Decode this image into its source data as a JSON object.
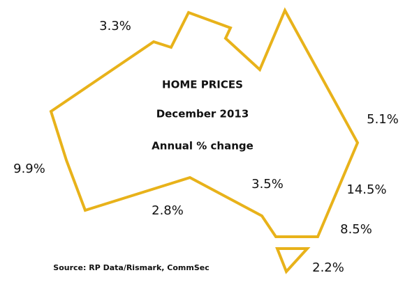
{
  "header": {
    "title": "HOME PRICES",
    "date": "December 2013",
    "measure": "Annual % change"
  },
  "regions": [
    {
      "label": "3.3%"
    },
    {
      "label": "5.1%"
    },
    {
      "label": "9.9%"
    },
    {
      "label": "3.5%"
    },
    {
      "label": "14.5%"
    },
    {
      "label": "2.8%"
    },
    {
      "label": "8.5%"
    },
    {
      "label": "2.2%"
    }
  ],
  "source": "Source: RP Data/Rismark, CommSec"
}
